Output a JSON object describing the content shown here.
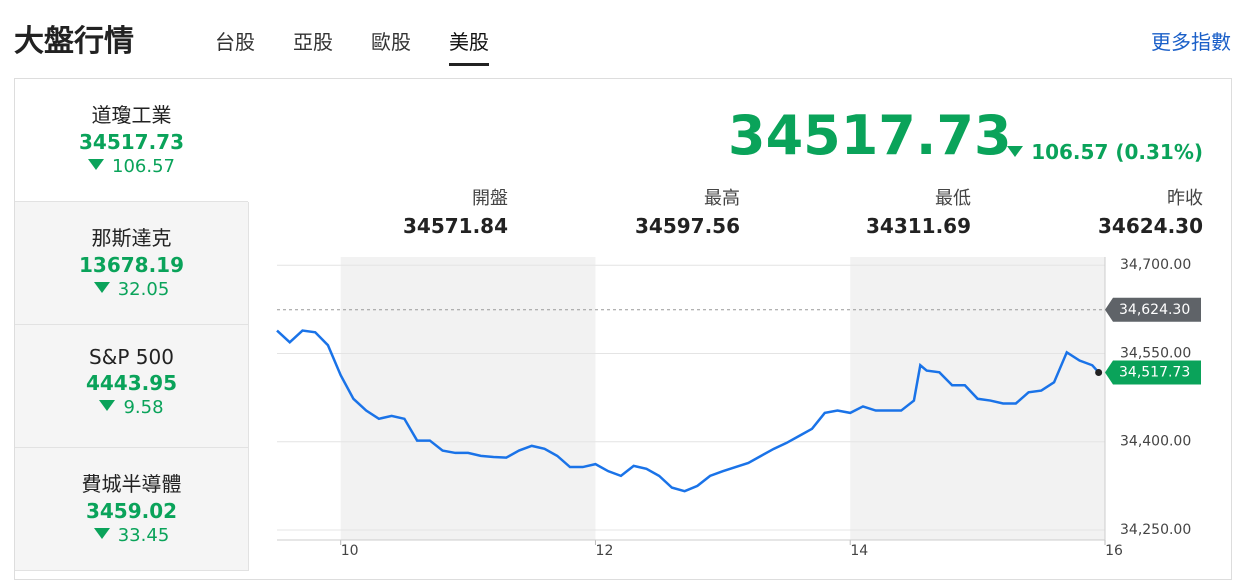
{
  "header": {
    "title": "大盤行情",
    "tabs": [
      "台股",
      "亞股",
      "歐股",
      "美股"
    ],
    "more_link": "更多指數"
  },
  "indices": [
    {
      "name": "道瓊工業",
      "value": "34517.73",
      "change": "106.57"
    },
    {
      "name": "那斯達克",
      "value": "13678.19",
      "change": "32.05"
    },
    {
      "name": "S&P 500",
      "value": "4443.95",
      "change": "9.58"
    },
    {
      "name": "費城半導體",
      "value": "3459.02",
      "change": "33.45"
    }
  ],
  "summary": {
    "price": "34517.73",
    "change": "106.57 (0.31%)",
    "stats": [
      {
        "label": "開盤",
        "value": "34571.84"
      },
      {
        "label": "最高",
        "value": "34597.56"
      },
      {
        "label": "最低",
        "value": "34311.69"
      },
      {
        "label": "昨收",
        "value": "34624.30"
      }
    ]
  },
  "chart_data": {
    "type": "line",
    "color": "#1a73e8",
    "x": [
      9.5,
      9.6,
      9.7,
      9.8,
      9.9,
      10.0,
      10.1,
      10.2,
      10.3,
      10.4,
      10.5,
      10.6,
      10.7,
      10.8,
      10.9,
      11.0,
      11.1,
      11.2,
      11.3,
      11.4,
      11.5,
      11.6,
      11.7,
      11.8,
      11.9,
      12.0,
      12.1,
      12.2,
      12.3,
      12.4,
      12.5,
      12.6,
      12.7,
      12.8,
      12.9,
      13.0,
      13.1,
      13.2,
      13.3,
      13.4,
      13.5,
      13.6,
      13.7,
      13.8,
      13.9,
      14.0,
      14.1,
      14.2,
      14.3,
      14.4,
      14.5,
      14.55,
      14.6,
      14.7,
      14.8,
      14.9,
      15.0,
      15.1,
      15.2,
      15.3,
      15.4,
      15.5,
      15.6,
      15.7,
      15.8,
      15.9,
      15.95
    ],
    "values": [
      34589,
      34569,
      34589,
      34586,
      34564,
      34513,
      34473,
      34453,
      34439,
      34444,
      34439,
      34402,
      34402,
      34385,
      34381,
      34381,
      34376,
      34374,
      34373,
      34385,
      34393,
      34388,
      34376,
      34357,
      34357,
      34362,
      34350,
      34342,
      34359,
      34354,
      34342,
      34322,
      34316,
      34325,
      34342,
      34350,
      34357,
      34364,
      34376,
      34388,
      34398,
      34410,
      34422,
      34449,
      34453,
      34449,
      34460,
      34453,
      34453,
      34453,
      34470,
      34530,
      34521,
      34518,
      34496,
      34496,
      34473,
      34470,
      34465,
      34465,
      34484,
      34487,
      34501,
      34552,
      34538,
      34530,
      34518
    ],
    "xlim": [
      9.5,
      16
    ],
    "xticks": [
      10,
      12,
      14,
      16
    ],
    "ylim": [
      34233,
      34714
    ],
    "yticks": [
      {
        "value": 34250,
        "label": "34,250.00"
      },
      {
        "value": 34400,
        "label": "34,400.00"
      },
      {
        "value": 34550,
        "label": "34,550.00"
      },
      {
        "value": 34700,
        "label": "34,700.00"
      }
    ],
    "grid": true,
    "reference_line": {
      "value": 34624.3,
      "label": "34,624.30"
    },
    "last_price": {
      "value": 34517.73,
      "label": "34,517.73"
    }
  }
}
